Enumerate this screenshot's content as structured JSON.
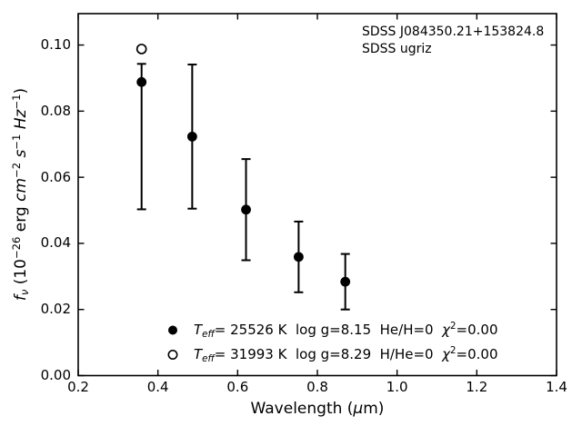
{
  "chart_data": {
    "type": "scatter",
    "title": "",
    "xlabel": "Wavelength (μm)",
    "ylabel": "f_ν (10⁻²⁶ erg cm⁻² s⁻¹ Hz⁻¹)",
    "xlabel_segments": [
      {
        "t": "Wavelength ("
      },
      {
        "t": "μ",
        "i": true
      },
      {
        "t": "m)"
      }
    ],
    "ylabel_segments": [
      {
        "t": "f",
        "i": true
      },
      {
        "t": "ν",
        "i": true,
        "s": "sub"
      },
      {
        "t": " (10"
      },
      {
        "t": "−26",
        "s": "sup"
      },
      {
        "t": " erg "
      },
      {
        "t": "cm",
        "i": true
      },
      {
        "t": "−2",
        "s": "sup"
      },
      {
        "t": " "
      },
      {
        "t": "s",
        "i": true
      },
      {
        "t": "−1",
        "s": "sup"
      },
      {
        "t": " "
      },
      {
        "t": "Hz",
        "i": true
      },
      {
        "t": "−1",
        "s": "sup"
      },
      {
        "t": ")"
      }
    ],
    "xlim": [
      0.2,
      1.4
    ],
    "ylim": [
      0,
      0.1095
    ],
    "xticks": [
      0.2,
      0.4,
      0.6,
      0.8,
      1.0,
      1.2,
      1.4
    ],
    "xtick_labels": [
      "0.2",
      "0.4",
      "0.6",
      "0.8",
      "1.0",
      "1.2",
      "1.4"
    ],
    "yticks": [
      0.0,
      0.02,
      0.04,
      0.06,
      0.08,
      0.1
    ],
    "ytick_labels": [
      "0.00",
      "0.02",
      "0.04",
      "0.06",
      "0.08",
      "0.10"
    ],
    "grid": false,
    "tick_direction": "in",
    "annotation": [
      "SDSS J084350.21+153824.8",
      "SDSS ugriz"
    ],
    "series": [
      {
        "name": "observed-flux-errorbars",
        "marker": "errorbar",
        "x": [
          0.359,
          0.486,
          0.621,
          0.753,
          0.87
        ],
        "y": [
          0.0723,
          0.0723,
          0.0502,
          0.0359,
          0.0284
        ],
        "yerr": [
          0.022,
          0.0218,
          0.0153,
          0.0107,
          0.0084
        ]
      },
      {
        "name": "model-Teff-25526K",
        "marker": "filled-circle",
        "x": [
          0.359,
          0.486,
          0.621,
          0.753,
          0.87
        ],
        "y": [
          0.0888,
          0.0723,
          0.0502,
          0.0359,
          0.0284
        ]
      },
      {
        "name": "model-Teff-31993K",
        "marker": "open-circle",
        "x": [
          0.359
        ],
        "y": [
          0.0988
        ]
      }
    ],
    "legend_position": "lower-center-inside",
    "legend": [
      {
        "marker": "filled-circle",
        "label": "T_eff= 25526 K  log g=8.15  He/H=0  χ²=0.00",
        "segments": [
          {
            "t": "T",
            "i": true
          },
          {
            "t": "eff",
            "i": true,
            "s": "sub"
          },
          {
            "t": "= 25526 K  log g=8.15  He/H=0  "
          },
          {
            "t": "χ",
            "i": true
          },
          {
            "t": "2",
            "s": "sup"
          },
          {
            "t": "=0.00"
          }
        ]
      },
      {
        "marker": "open-circle",
        "label": "T_eff= 31993 K  log g=8.29  H/He=0  χ²=0.00",
        "segments": [
          {
            "t": "T",
            "i": true
          },
          {
            "t": "eff",
            "i": true,
            "s": "sub"
          },
          {
            "t": "= 31993 K  log g=8.29  H/He=0  "
          },
          {
            "t": "χ",
            "i": true
          },
          {
            "t": "2",
            "s": "sup"
          },
          {
            "t": "=0.00"
          }
        ]
      }
    ],
    "colors": {
      "foreground": "#000000",
      "background": "#ffffff"
    }
  }
}
